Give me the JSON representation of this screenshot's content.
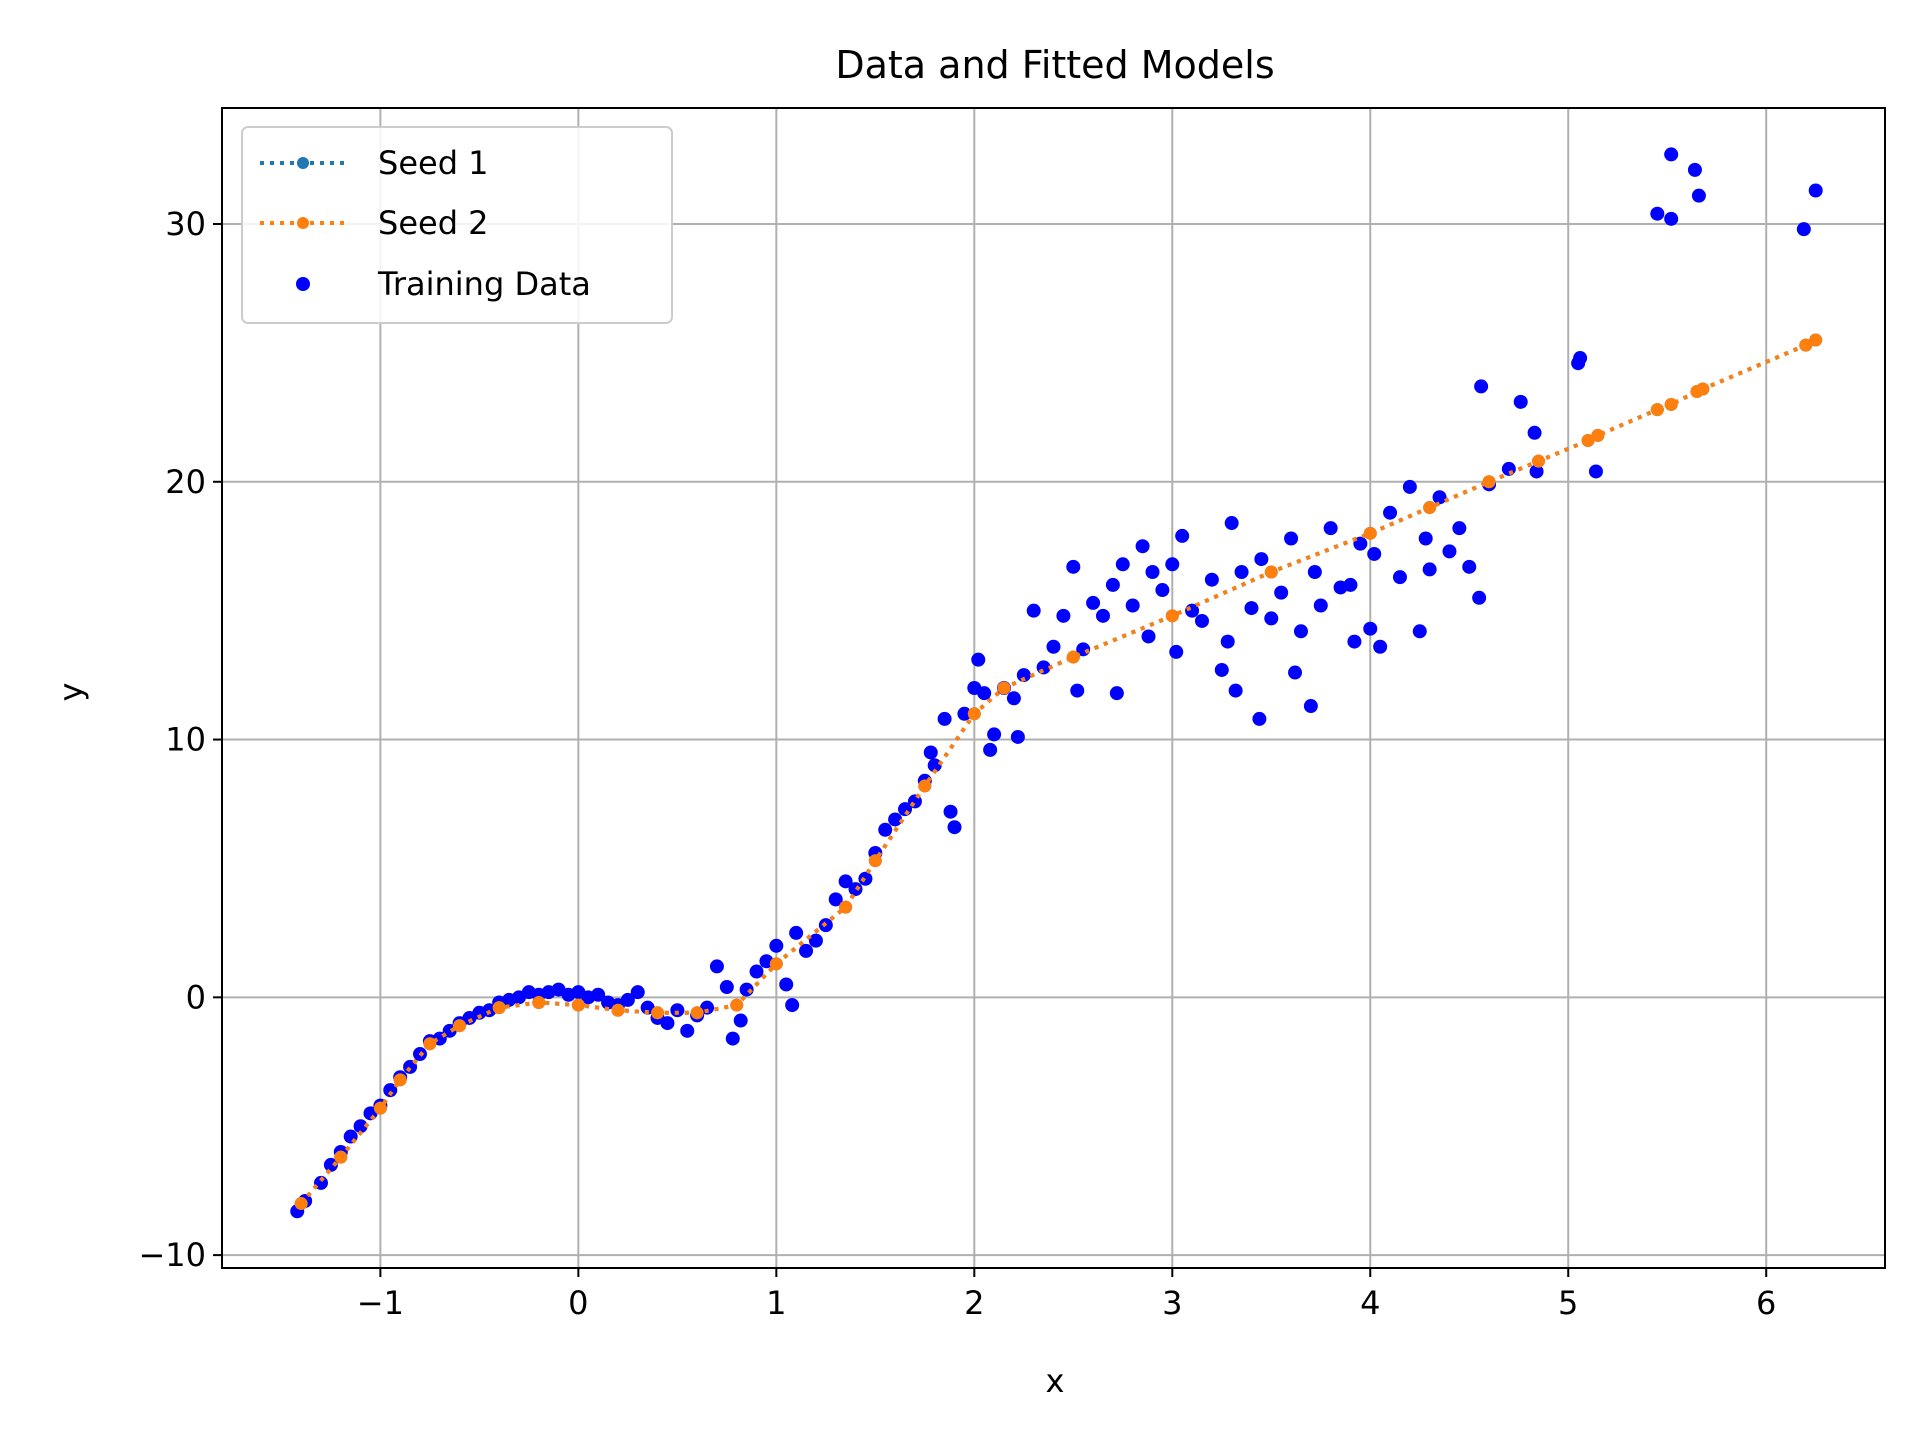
{
  "chart_data": {
    "type": "scatter",
    "title": "Data and Fitted Models",
    "xlabel": "x",
    "ylabel": "y",
    "xlim": [
      -1.8,
      6.6
    ],
    "ylim": [
      -10.5,
      34.5
    ],
    "x_ticks": [
      -1,
      0,
      1,
      2,
      3,
      4,
      5,
      6
    ],
    "x_tick_labels": [
      "−1",
      "0",
      "1",
      "2",
      "3",
      "4",
      "5",
      "6"
    ],
    "y_ticks": [
      -10,
      0,
      10,
      20,
      30
    ],
    "y_tick_labels": [
      "−10",
      "0",
      "10",
      "20",
      "30"
    ],
    "grid": true,
    "legend_position": "top-left",
    "colors": {
      "seed1": "#1f77b4",
      "seed2": "#ff7f0e",
      "training": "#0000ff",
      "grid": "#b0b0b0"
    },
    "series": [
      {
        "name": "Seed 1",
        "style": "dotted-line-with-markers",
        "color": "#1f77b4",
        "x": [
          -1.4,
          -1.2,
          -1.0,
          -0.9,
          -0.75,
          -0.6,
          -0.4,
          -0.2,
          0.0,
          0.2,
          0.4,
          0.6,
          0.8,
          1.0,
          1.35,
          1.5,
          1.75,
          2.0,
          2.15,
          2.5,
          3.0,
          3.5,
          4.0,
          4.3,
          4.6,
          4.85,
          5.1,
          5.15,
          5.45,
          5.52,
          5.65,
          5.68,
          6.2,
          6.25
        ],
        "y": [
          -8.0,
          -6.2,
          -4.3,
          -3.2,
          -1.8,
          -1.1,
          -0.4,
          -0.2,
          -0.3,
          -0.5,
          -0.6,
          -0.6,
          -0.3,
          1.3,
          3.5,
          5.3,
          8.2,
          11.0,
          12.0,
          13.2,
          14.8,
          16.5,
          18.0,
          19.0,
          20.0,
          20.8,
          21.6,
          21.8,
          22.8,
          23.0,
          23.5,
          23.6,
          25.3,
          25.5
        ]
      },
      {
        "name": "Seed 2",
        "style": "dotted-line-with-markers",
        "color": "#ff7f0e",
        "x": [
          -1.4,
          -1.2,
          -1.0,
          -0.9,
          -0.75,
          -0.6,
          -0.4,
          -0.2,
          0.0,
          0.2,
          0.4,
          0.6,
          0.8,
          1.0,
          1.35,
          1.5,
          1.75,
          2.0,
          2.15,
          2.5,
          3.0,
          3.5,
          4.0,
          4.3,
          4.6,
          4.85,
          5.1,
          5.15,
          5.45,
          5.52,
          5.65,
          5.68,
          6.2,
          6.25
        ],
        "y": [
          -8.0,
          -6.2,
          -4.3,
          -3.2,
          -1.8,
          -1.1,
          -0.4,
          -0.2,
          -0.3,
          -0.5,
          -0.6,
          -0.6,
          -0.3,
          1.3,
          3.5,
          5.3,
          8.2,
          11.0,
          12.0,
          13.2,
          14.8,
          16.5,
          18.0,
          19.0,
          20.0,
          20.8,
          21.6,
          21.8,
          22.8,
          23.0,
          23.5,
          23.6,
          25.3,
          25.5
        ]
      },
      {
        "name": "Training Data",
        "style": "scatter",
        "color": "#0000ff",
        "points": [
          [
            -1.42,
            -8.3
          ],
          [
            -1.38,
            -7.9
          ],
          [
            -1.3,
            -7.2
          ],
          [
            -1.25,
            -6.5
          ],
          [
            -1.2,
            -6.0
          ],
          [
            -1.15,
            -5.4
          ],
          [
            -1.1,
            -5.0
          ],
          [
            -1.05,
            -4.5
          ],
          [
            -1.0,
            -4.2
          ],
          [
            -0.95,
            -3.6
          ],
          [
            -0.9,
            -3.1
          ],
          [
            -0.85,
            -2.7
          ],
          [
            -0.8,
            -2.2
          ],
          [
            -0.75,
            -1.7
          ],
          [
            -0.7,
            -1.6
          ],
          [
            -0.65,
            -1.3
          ],
          [
            -0.6,
            -1.0
          ],
          [
            -0.55,
            -0.8
          ],
          [
            -0.5,
            -0.6
          ],
          [
            -0.45,
            -0.5
          ],
          [
            -0.4,
            -0.2
          ],
          [
            -0.35,
            -0.1
          ],
          [
            -0.3,
            0.0
          ],
          [
            -0.25,
            0.2
          ],
          [
            -0.2,
            0.1
          ],
          [
            -0.15,
            0.2
          ],
          [
            -0.1,
            0.3
          ],
          [
            -0.05,
            0.1
          ],
          [
            0.0,
            0.2
          ],
          [
            0.05,
            0.0
          ],
          [
            0.1,
            0.1
          ],
          [
            0.15,
            -0.2
          ],
          [
            0.2,
            -0.3
          ],
          [
            0.25,
            -0.1
          ],
          [
            0.3,
            0.2
          ],
          [
            0.35,
            -0.4
          ],
          [
            0.4,
            -0.8
          ],
          [
            0.45,
            -1.0
          ],
          [
            0.5,
            -0.5
          ],
          [
            0.55,
            -1.3
          ],
          [
            0.6,
            -0.7
          ],
          [
            0.65,
            -0.4
          ],
          [
            0.7,
            1.2
          ],
          [
            0.75,
            0.4
          ],
          [
            0.78,
            -1.6
          ],
          [
            0.82,
            -0.9
          ],
          [
            0.85,
            0.3
          ],
          [
            0.9,
            1.0
          ],
          [
            0.95,
            1.4
          ],
          [
            1.0,
            2.0
          ],
          [
            1.05,
            0.5
          ],
          [
            1.08,
            -0.3
          ],
          [
            1.1,
            2.5
          ],
          [
            1.15,
            1.8
          ],
          [
            1.2,
            2.2
          ],
          [
            1.25,
            2.8
          ],
          [
            1.3,
            3.8
          ],
          [
            1.35,
            4.5
          ],
          [
            1.4,
            4.2
          ],
          [
            1.45,
            4.6
          ],
          [
            1.5,
            5.6
          ],
          [
            1.55,
            6.5
          ],
          [
            1.6,
            6.9
          ],
          [
            1.65,
            7.3
          ],
          [
            1.7,
            7.6
          ],
          [
            1.75,
            8.4
          ],
          [
            1.78,
            9.5
          ],
          [
            1.8,
            9.0
          ],
          [
            1.85,
            10.8
          ],
          [
            1.88,
            7.2
          ],
          [
            1.9,
            6.6
          ],
          [
            1.95,
            11.0
          ],
          [
            2.0,
            12.0
          ],
          [
            2.02,
            13.1
          ],
          [
            2.05,
            11.8
          ],
          [
            2.08,
            9.6
          ],
          [
            2.1,
            10.2
          ],
          [
            2.15,
            12.0
          ],
          [
            2.2,
            11.6
          ],
          [
            2.22,
            10.1
          ],
          [
            2.25,
            12.5
          ],
          [
            2.3,
            15.0
          ],
          [
            2.35,
            12.8
          ],
          [
            2.4,
            13.6
          ],
          [
            2.45,
            14.8
          ],
          [
            2.5,
            16.7
          ],
          [
            2.52,
            11.9
          ],
          [
            2.55,
            13.5
          ],
          [
            2.6,
            15.3
          ],
          [
            2.65,
            14.8
          ],
          [
            2.7,
            16.0
          ],
          [
            2.72,
            11.8
          ],
          [
            2.75,
            16.8
          ],
          [
            2.8,
            15.2
          ],
          [
            2.85,
            17.5
          ],
          [
            2.88,
            14.0
          ],
          [
            2.9,
            16.5
          ],
          [
            2.95,
            15.8
          ],
          [
            3.0,
            16.8
          ],
          [
            3.02,
            13.4
          ],
          [
            3.05,
            17.9
          ],
          [
            3.1,
            15.0
          ],
          [
            3.15,
            14.6
          ],
          [
            3.2,
            16.2
          ],
          [
            3.25,
            12.7
          ],
          [
            3.28,
            13.8
          ],
          [
            3.3,
            18.4
          ],
          [
            3.32,
            11.9
          ],
          [
            3.35,
            16.5
          ],
          [
            3.4,
            15.1
          ],
          [
            3.44,
            10.8
          ],
          [
            3.45,
            17.0
          ],
          [
            3.5,
            14.7
          ],
          [
            3.55,
            15.7
          ],
          [
            3.6,
            17.8
          ],
          [
            3.62,
            12.6
          ],
          [
            3.65,
            14.2
          ],
          [
            3.7,
            11.3
          ],
          [
            3.72,
            16.5
          ],
          [
            3.75,
            15.2
          ],
          [
            3.8,
            18.2
          ],
          [
            3.85,
            15.9
          ],
          [
            3.9,
            16.0
          ],
          [
            3.92,
            13.8
          ],
          [
            3.95,
            17.6
          ],
          [
            4.0,
            14.3
          ],
          [
            4.02,
            17.2
          ],
          [
            4.05,
            13.6
          ],
          [
            4.1,
            18.8
          ],
          [
            4.15,
            16.3
          ],
          [
            4.2,
            19.8
          ],
          [
            4.25,
            14.2
          ],
          [
            4.28,
            17.8
          ],
          [
            4.3,
            16.6
          ],
          [
            4.35,
            19.4
          ],
          [
            4.4,
            17.3
          ],
          [
            4.45,
            18.2
          ],
          [
            4.5,
            16.7
          ],
          [
            4.55,
            15.5
          ],
          [
            4.56,
            23.7
          ],
          [
            4.6,
            19.9
          ],
          [
            4.7,
            20.5
          ],
          [
            4.76,
            23.1
          ],
          [
            4.83,
            21.9
          ],
          [
            4.84,
            20.4
          ],
          [
            5.05,
            24.6
          ],
          [
            5.06,
            24.8
          ],
          [
            5.14,
            20.4
          ],
          [
            5.45,
            30.4
          ],
          [
            5.52,
            30.2
          ],
          [
            5.52,
            32.7
          ],
          [
            5.64,
            32.1
          ],
          [
            5.66,
            31.1
          ],
          [
            6.19,
            29.8
          ],
          [
            6.25,
            31.3
          ]
        ]
      }
    ]
  }
}
